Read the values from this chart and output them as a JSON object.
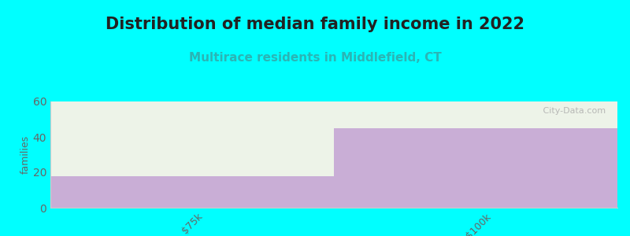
{
  "title": "Distribution of median family income in 2022",
  "subtitle": "Multirace residents in Middlefield, CT",
  "categories": [
    "$75k",
    ">$100k"
  ],
  "purple_values": [
    18,
    45
  ],
  "green_values": [
    42,
    15
  ],
  "purple_color": "#c9aed6",
  "green_color": "#edf3e8",
  "background_color": "#00ffff",
  "plot_bg_color": "#ffffff",
  "ylabel": "families",
  "ylim": [
    0,
    60
  ],
  "yticks": [
    0,
    20,
    40,
    60
  ],
  "title_fontsize": 15,
  "subtitle_fontsize": 11,
  "title_color": "#222222",
  "subtitle_color": "#2ab5b5",
  "watermark": " City-Data.com",
  "ylabel_color": "#666666",
  "tick_color": "#666666",
  "spine_color": "#cccccc"
}
